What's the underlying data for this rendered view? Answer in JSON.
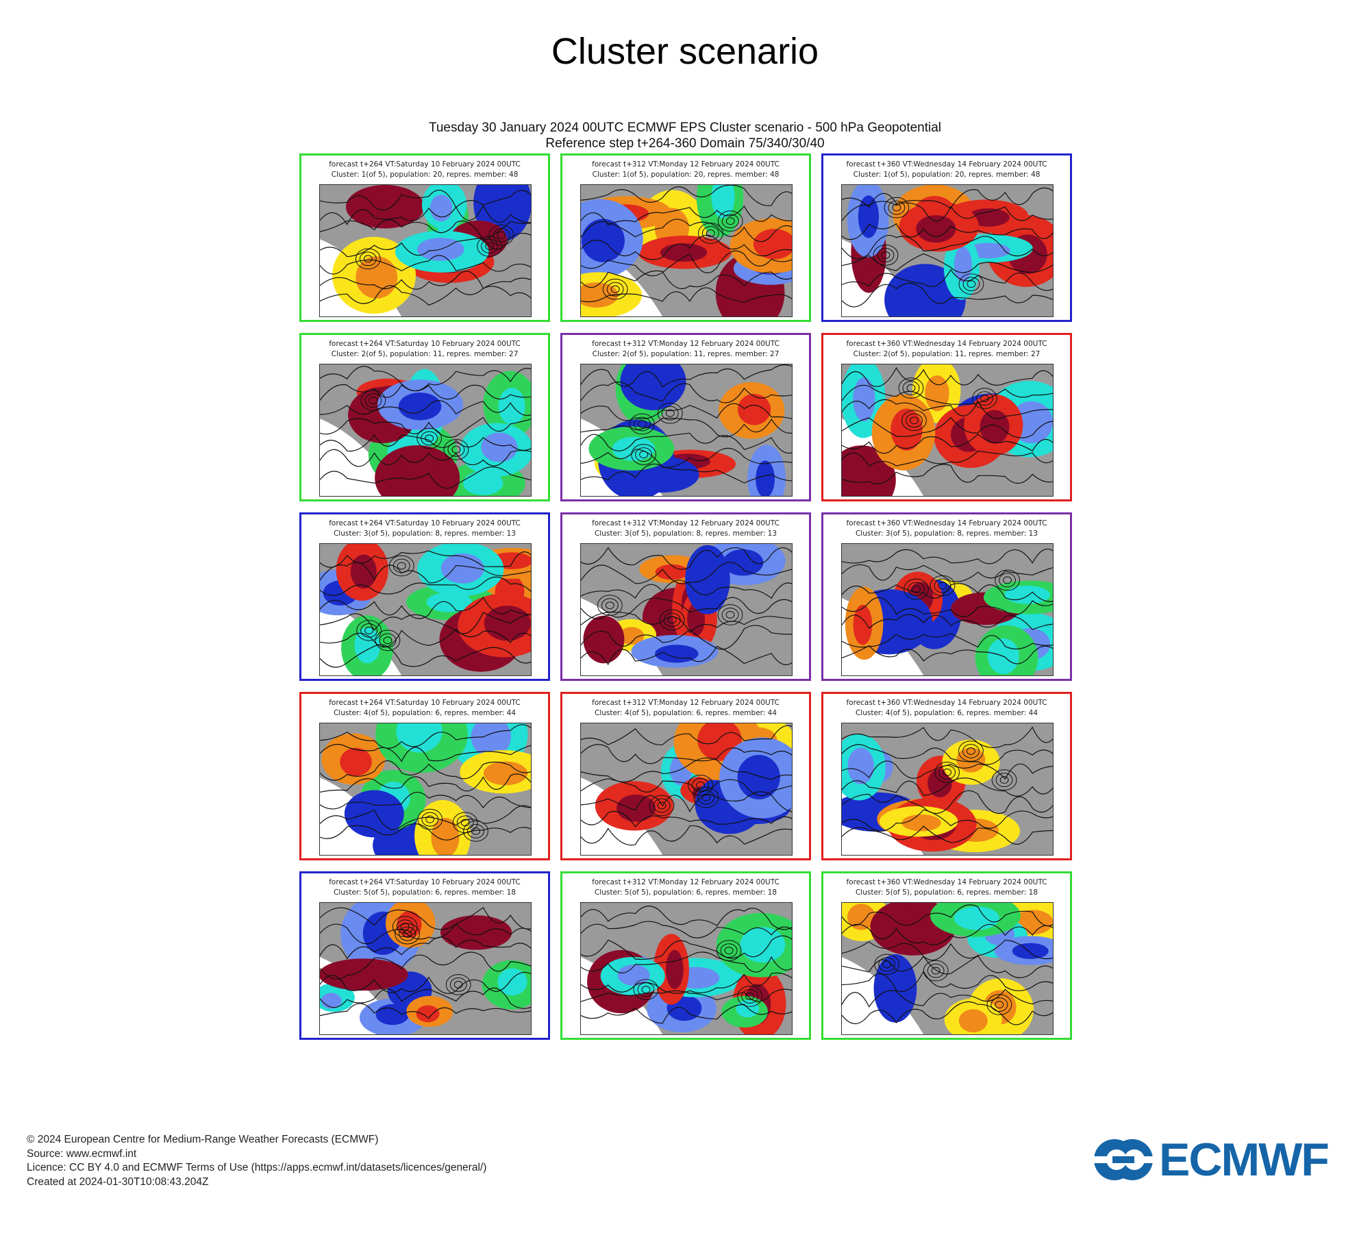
{
  "page": {
    "title": "Cluster scenario",
    "plot_title_line1": "Tuesday 30 January 2024 00UTC ECMWF EPS Cluster scenario - 500 hPa Geopotential",
    "plot_title_line2": "Reference step t+264-360 Domain 75/340/30/40"
  },
  "colors": {
    "frame_green": "#33dd33",
    "frame_blue": "#2222cc",
    "frame_purple": "#7a2ea8",
    "frame_red": "#e02020",
    "anomaly_dark_red": "#8b0a2a",
    "anomaly_red": "#e22a1f",
    "anomaly_orange": "#f08a1a",
    "anomaly_yellow": "#fbe51a",
    "anomaly_green": "#2fd35a",
    "anomaly_cyan": "#22e0d6",
    "anomaly_blue": "#6a8cf0",
    "anomaly_dark_blue": "#1a2ecc",
    "land_grey": "#9a9a9a",
    "logo_blue": "#1565a8"
  },
  "panels": [
    {
      "row": 1,
      "col": 1,
      "frame": "green",
      "line1": "forecast t+264 VT:Saturday 10 February 2024 00UTC",
      "line2": "Cluster: 1(of 5), population: 20, repres. member: 48"
    },
    {
      "row": 1,
      "col": 2,
      "frame": "green",
      "line1": "forecast t+312 VT:Monday 12 February 2024 00UTC",
      "line2": "Cluster: 1(of 5), population: 20, repres. member: 48"
    },
    {
      "row": 1,
      "col": 3,
      "frame": "blue",
      "line1": "forecast t+360 VT:Wednesday 14 February 2024 00UTC",
      "line2": "Cluster: 1(of 5), population: 20, repres. member: 48"
    },
    {
      "row": 2,
      "col": 1,
      "frame": "green",
      "line1": "forecast t+264 VT:Saturday 10 February 2024 00UTC",
      "line2": "Cluster: 2(of 5), population: 11, repres. member: 27"
    },
    {
      "row": 2,
      "col": 2,
      "frame": "purple",
      "line1": "forecast t+312 VT:Monday 12 February 2024 00UTC",
      "line2": "Cluster: 2(of 5), population: 11, repres. member: 27"
    },
    {
      "row": 2,
      "col": 3,
      "frame": "red",
      "line1": "forecast t+360 VT:Wednesday 14 February 2024 00UTC",
      "line2": "Cluster: 2(of 5), population: 11, repres. member: 27"
    },
    {
      "row": 3,
      "col": 1,
      "frame": "blue",
      "line1": "forecast t+264 VT:Saturday 10 February 2024 00UTC",
      "line2": "Cluster: 3(of 5), population: 8, repres. member: 13"
    },
    {
      "row": 3,
      "col": 2,
      "frame": "purple",
      "line1": "forecast t+312 VT:Monday 12 February 2024 00UTC",
      "line2": "Cluster: 3(of 5), population: 8, repres. member: 13"
    },
    {
      "row": 3,
      "col": 3,
      "frame": "purple",
      "line1": "forecast t+360 VT:Wednesday 14 February 2024 00UTC",
      "line2": "Cluster: 3(of 5), population: 8, repres. member: 13"
    },
    {
      "row": 4,
      "col": 1,
      "frame": "red",
      "line1": "forecast t+264 VT:Saturday 10 February 2024 00UTC",
      "line2": "Cluster: 4(of 5), population: 6, repres. member: 44"
    },
    {
      "row": 4,
      "col": 2,
      "frame": "red",
      "line1": "forecast t+312 VT:Monday 12 February 2024 00UTC",
      "line2": "Cluster: 4(of 5), population: 6, repres. member: 44"
    },
    {
      "row": 4,
      "col": 3,
      "frame": "red",
      "line1": "forecast t+360 VT:Wednesday 14 February 2024 00UTC",
      "line2": "Cluster: 4(of 5), population: 6, repres. member: 44"
    },
    {
      "row": 5,
      "col": 1,
      "frame": "blue",
      "line1": "forecast t+264 VT:Saturday 10 February 2024 00UTC",
      "line2": "Cluster: 5(of 5), population: 6, repres. member: 18"
    },
    {
      "row": 5,
      "col": 2,
      "frame": "green",
      "line1": "forecast t+312 VT:Monday 12 February 2024 00UTC",
      "line2": "Cluster: 5(of 5), population: 6, repres. member: 18"
    },
    {
      "row": 5,
      "col": 3,
      "frame": "green",
      "line1": "forecast t+360 VT:Wednesday 14 February 2024 00UTC",
      "line2": "Cluster: 5(of 5), population: 6, repres. member: 18"
    }
  ],
  "footer": {
    "copyright": "© 2024 European Centre for Medium-Range Weather Forecasts (ECMWF)",
    "source": "Source: www.ecmwf.int",
    "licence": "Licence: CC BY 4.0 and ECMWF Terms of Use (https://apps.ecmwf.int/datasets/licences/general/)",
    "created": "Created at 2024-01-30T10:08:43.204Z"
  },
  "logo": {
    "text": "ECMWF"
  }
}
